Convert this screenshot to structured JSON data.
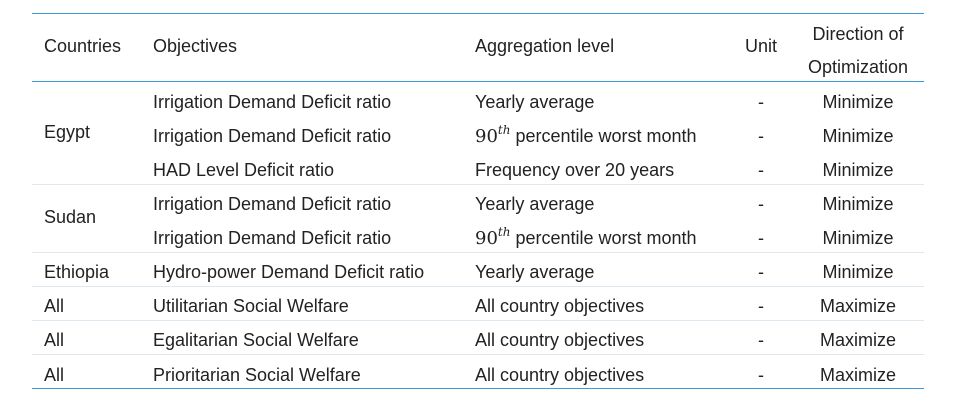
{
  "header": {
    "countries": "Countries",
    "objectives": "Objectives",
    "aggregation": "Aggregation level",
    "unit": "Unit",
    "direction_line1": "Direction of",
    "direction_line2": "Optimization"
  },
  "groups": [
    {
      "country": "Egypt"
    },
    {
      "country": "Sudan"
    }
  ],
  "rows": [
    {
      "country": "",
      "objective": "Irrigation Demand Deficit ratio",
      "aggregation": "Yearly average",
      "unit": "-",
      "direction": "Minimize"
    },
    {
      "country": "",
      "objective": "Irrigation Demand Deficit ratio",
      "aggregation_num": "90",
      "aggregation_sup": "th",
      "aggregation": "percentile worst month",
      "unit": "-",
      "direction": "Minimize"
    },
    {
      "country": "",
      "objective": "HAD Level Deficit ratio",
      "aggregation": "Frequency over 20 years",
      "unit": "-",
      "direction": "Minimize"
    },
    {
      "country": "",
      "objective": "Irrigation Demand Deficit ratio",
      "aggregation": "Yearly average",
      "unit": "-",
      "direction": "Minimize"
    },
    {
      "country": "",
      "objective": "Irrigation Demand Deficit ratio",
      "aggregation_num": "90",
      "aggregation_sup": "th",
      "aggregation": "percentile worst month",
      "unit": "-",
      "direction": "Minimize"
    },
    {
      "country": "Ethiopia",
      "objective": "Hydro-power Demand Deficit ratio",
      "aggregation": "Yearly average",
      "unit": "-",
      "direction": "Minimize"
    },
    {
      "country": "All",
      "objective": "Utilitarian Social Welfare",
      "aggregation": "All country objectives",
      "unit": "-",
      "direction": "Maximize"
    },
    {
      "country": "All",
      "objective": "Egalitarian Social Welfare",
      "aggregation": "All country objectives",
      "unit": "-",
      "direction": "Maximize"
    },
    {
      "country": "All",
      "objective": "Prioritarian Social Welfare",
      "aggregation": "All country objectives",
      "unit": "-",
      "direction": "Maximize"
    }
  ],
  "colors": {
    "rule": "#3a9ad9",
    "separator": "#dfe8ee",
    "text": "#222222"
  }
}
